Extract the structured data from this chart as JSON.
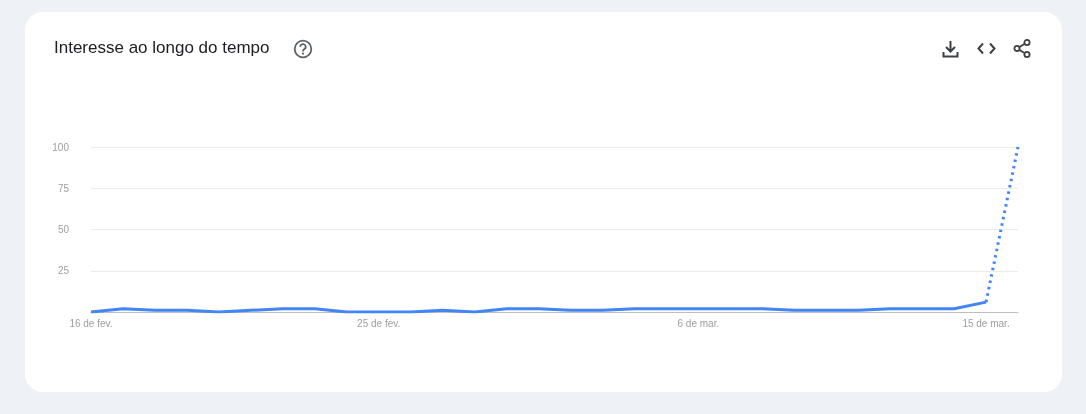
{
  "chart_data": {
    "type": "line",
    "title": "Interesse ao longo do tempo",
    "x": [
      "--02-16",
      "--02-17",
      "--02-18",
      "--02-19",
      "--02-20",
      "--02-21",
      "--02-22",
      "--02-23",
      "--02-24",
      "--02-25",
      "--02-26",
      "--02-27",
      "--02-28",
      "--02-29",
      "--03-01",
      "--03-02",
      "--03-03",
      "--03-04",
      "--03-05",
      "--03-06",
      "--03-07",
      "--03-08",
      "--03-09",
      "--03-10",
      "--03-11",
      "--03-12",
      "--03-13",
      "--03-14",
      "--03-15"
    ],
    "series": [
      {
        "color": "#4285f4",
        "line_style": "solid",
        "values": [
          0,
          2,
          1,
          1,
          0,
          1,
          2,
          2,
          0,
          0,
          0,
          1,
          0,
          2,
          2,
          1,
          1,
          2,
          2,
          2,
          2,
          2,
          1,
          1,
          1,
          2,
          2,
          2,
          6
        ]
      },
      {
        "color": "#4285f4",
        "line_style": "dotted",
        "x": [
          "--03-15",
          "--03-16"
        ],
        "values": [
          6,
          100
        ]
      }
    ],
    "xlim": [
      "--02-16",
      "--03-16"
    ],
    "xticks": [
      {
        "value": "--02-16",
        "label": "16 de fev."
      },
      {
        "value": "--02-25",
        "label": "25 de fev."
      },
      {
        "value": "--03-06",
        "label": "6 de mar."
      },
      {
        "value": "--03-15",
        "label": "15 de mar."
      }
    ],
    "ylim": [
      0,
      100
    ],
    "yticks": [
      {
        "value": 0,
        "label": null
      },
      25,
      50,
      75,
      100
    ],
    "grid": "y",
    "marker": "none"
  }
}
